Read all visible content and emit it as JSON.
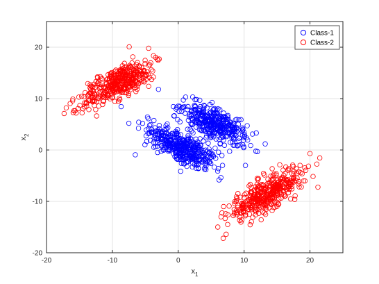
{
  "chart_data": {
    "type": "scatter",
    "title": "",
    "xlabel_main": "x",
    "xlabel_sub": "1",
    "ylabel_main": "x",
    "ylabel_sub": "2",
    "xlim": [
      -20,
      25
    ],
    "ylim": [
      -20,
      25
    ],
    "xticks": [
      -20,
      -10,
      0,
      10,
      20
    ],
    "yticks": [
      -20,
      -10,
      0,
      10,
      20
    ],
    "grid": true,
    "legend_position": "top-right",
    "marker": "open-circle",
    "series": [
      {
        "name": "Class-1",
        "color": "#0000ff",
        "clusters": [
          {
            "center": [
              0.5,
              0.5
            ],
            "major_sd": 3.0,
            "minor_sd": 1.3,
            "angle_deg": -38,
            "count": 420
          },
          {
            "center": [
              5.5,
              5.0
            ],
            "major_sd": 2.8,
            "minor_sd": 1.3,
            "angle_deg": -38,
            "count": 380
          }
        ],
        "outliers": [
          [
            -7.5,
            5.2
          ],
          [
            -3.0,
            11.8
          ],
          [
            -6.0,
            5.4
          ],
          [
            9.8,
            1.0
          ],
          [
            10.2,
            -3.0
          ]
        ]
      },
      {
        "name": "Class-2",
        "color": "#ff0000",
        "clusters": [
          {
            "center": [
              -9.0,
              13.2
            ],
            "major_sd": 3.3,
            "minor_sd": 1.3,
            "angle_deg": 38,
            "count": 420
          },
          {
            "center": [
              13.5,
              -8.5
            ],
            "major_sd": 3.3,
            "minor_sd": 1.3,
            "angle_deg": 38,
            "count": 420
          }
        ],
        "outliers": [
          [
            -17.0,
            8.2
          ],
          [
            -15.5,
            7.2
          ],
          [
            -14.0,
            9.0
          ],
          [
            -4.5,
            19.8
          ],
          [
            20.0,
            -0.7
          ],
          [
            6.0,
            -15.0
          ],
          [
            7.5,
            -14.5
          ],
          [
            6.5,
            -13.0
          ],
          [
            18.5,
            -3.0
          ]
        ]
      }
    ]
  }
}
